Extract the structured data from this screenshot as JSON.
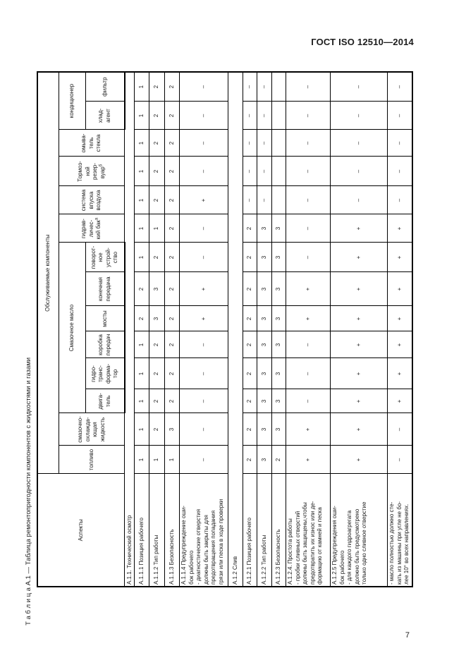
{
  "page": {
    "header": "ГОСТ ISO 12510—2014",
    "number": "7"
  },
  "table": {
    "title": "Т а б л и ц а   А.1 — Таблица ремонтопригодности компонентов с жидкостями и газами",
    "aspects_header": "Аспекты",
    "components_header": "Обслуживаемые компоненты",
    "groups": [
      {
        "name": "Смазочное масло",
        "key": "lubricating-oil",
        "from": 2,
        "to": 7
      },
      {
        "name": "кондиционер",
        "key": "air-conditioner",
        "from": 12,
        "to": 13
      }
    ],
    "columns": [
      {
        "key": "fuel",
        "label": "топливо",
        "sup": "",
        "width": 40
      },
      {
        "key": "coolant",
        "label": "смазочно-\nохлажда-\nющая\nжидкость",
        "sup": "",
        "width": 46
      },
      {
        "key": "engine",
        "label": "двига-\nтель",
        "sup": "",
        "width": 34
      },
      {
        "key": "torque-converter",
        "label": "гидро-\nтранс-\nформа-\nтор",
        "sup": "",
        "width": 44
      },
      {
        "key": "gearbox",
        "label": "коробка\nпередач",
        "sup": "",
        "width": 38
      },
      {
        "key": "axles",
        "label": "мосты",
        "sup": "",
        "width": 36
      },
      {
        "key": "final-drive",
        "label": "конечная\nпередача",
        "sup": "",
        "width": 48
      },
      {
        "key": "swing-gear",
        "label": "поворот-\nное\nустрой-\nство",
        "sup": "",
        "width": 42
      },
      {
        "key": "hydraulic-tank",
        "label": "гидрав-\nличес-\nкий бак",
        "sup": "а",
        "width": 40
      },
      {
        "key": "air-intake",
        "label": "система\nвпуска\nвоздуха",
        "sup": "",
        "width": 40
      },
      {
        "key": "brake-reservoir",
        "label": "Тормоз-\nной\nрезер-\nвуар",
        "sup": "б",
        "width": 42
      },
      {
        "key": "washer",
        "label": "омыва-\nтель\nстекла",
        "sup": "",
        "width": 38
      },
      {
        "key": "refrigerant",
        "label": "хлад-\nагент",
        "sup": "",
        "width": 40
      },
      {
        "key": "filter",
        "label": "фильтр",
        "sup": "",
        "width": 42
      }
    ],
    "header_heights": {
      "row1": 27,
      "group": 38,
      "leaf": 55
    },
    "aspects_width": 160,
    "rows": [
      {
        "type": "section",
        "key": "a-1-1",
        "label": "А.1.1.  Технический осмотр",
        "height": 12
      },
      {
        "type": "data",
        "key": "a-1-1-1",
        "label": "А.1.1.1  Позиция рабочего",
        "height": 21,
        "single": true,
        "values": [
          "1",
          "1",
          "1",
          "1",
          "1",
          "2",
          "2",
          "1",
          "1",
          "1",
          "1",
          "1",
          "1",
          "1"
        ]
      },
      {
        "type": "data",
        "key": "a-1-1-2",
        "label": "А.1.1.2  Тип работы",
        "height": 22,
        "single": true,
        "values": [
          "1",
          "2",
          "2",
          "2",
          "2",
          "3",
          "3",
          "2",
          "1",
          "2",
          "2",
          "2",
          "2",
          "2"
        ]
      },
      {
        "type": "data",
        "key": "a-1-1-3",
        "label": "А.1.1.3  Безопасность",
        "height": 21,
        "single": true,
        "values": [
          "1",
          "3",
          "2",
          "2",
          "2",
          "2",
          "2",
          "2",
          "2",
          "2",
          "2",
          "2",
          "2",
          "2"
        ]
      },
      {
        "type": "data",
        "key": "a-1-1-4",
        "label": "А.1.1.4  Предупреждение оши-\nбок рабочего\n- диагностические   отверстия\nдолжны   быть   закрыты   для\nпредотвращения    попадания\nгрязи или песка в ходе проверки",
        "height": 69,
        "single": false,
        "values": [
          "–",
          "–",
          "–",
          "–",
          "–",
          "+",
          "+",
          "–",
          "–",
          "+",
          "–",
          "–",
          "–",
          "–"
        ]
      },
      {
        "type": "section",
        "key": "a-1-2",
        "label": "А.1.2  Слив",
        "height": 21
      },
      {
        "type": "data",
        "key": "a-1-2-1",
        "label": "А.1.2.1  Позиция рабочего",
        "height": 20,
        "single": true,
        "values": [
          "2",
          "2",
          "2",
          "2",
          "2",
          "2",
          "2",
          "2",
          "2",
          "–",
          "–",
          "–",
          "–",
          "–"
        ]
      },
      {
        "type": "data",
        "key": "a-1-2-2",
        "label": "А.1.2.2  Тип работы",
        "height": 21,
        "single": true,
        "values": [
          "3",
          "3",
          "3",
          "3",
          "3",
          "3",
          "3",
          "3",
          "3",
          "–",
          "–",
          "–",
          "–",
          "–"
        ]
      },
      {
        "type": "data",
        "key": "a-1-2-3",
        "label": "А.1.2.3  Безопасность",
        "height": 20,
        "single": true,
        "values": [
          "2",
          "3",
          "3",
          "3",
          "3",
          "3",
          "3",
          "3",
          "3",
          "",
          "",
          "",
          "",
          ""
        ]
      },
      {
        "type": "data",
        "key": "a-1-2-4",
        "label": "А.1.2.4.  Простота работы\n- пробки   сливных   отверстий\nдолжны быть защищены,чтобы\nпредотвратить их износ или де-\nформацию от камней и песка",
        "height": 63,
        "single": false,
        "values": [
          "+",
          "+",
          "–",
          "–",
          "–",
          "+",
          "+",
          "–",
          "–",
          "–",
          "–",
          "–",
          "–",
          "–"
        ]
      },
      {
        "type": "data",
        "key": "a-1-2-5",
        "label": "А.1.2.5  Предупреждения  оши-\nбок рабочего\n- для   каждого    гидроагрегата\nдолжно   быть   предусмотрено\nтолько одно сливное отверстие",
        "height": 81,
        "single": false,
        "values": [
          "+",
          "+",
          "+",
          "+",
          "+",
          "+",
          "+",
          "+",
          "+",
          "–",
          "–",
          "–",
          "–",
          "–"
        ]
      },
      {
        "type": "data",
        "key": "a-1-2-5-cont",
        "label": "- масло полностью должно сте-\nкать из машины при угле не бо-\nлее 10° во всех направлениях.",
        "height": 34,
        "single": false,
        "values": [
          "–",
          "–",
          "+",
          "+",
          "+",
          "+",
          "+",
          "+",
          "+",
          "–",
          "–",
          "–",
          "–",
          "–"
        ]
      }
    ]
  }
}
